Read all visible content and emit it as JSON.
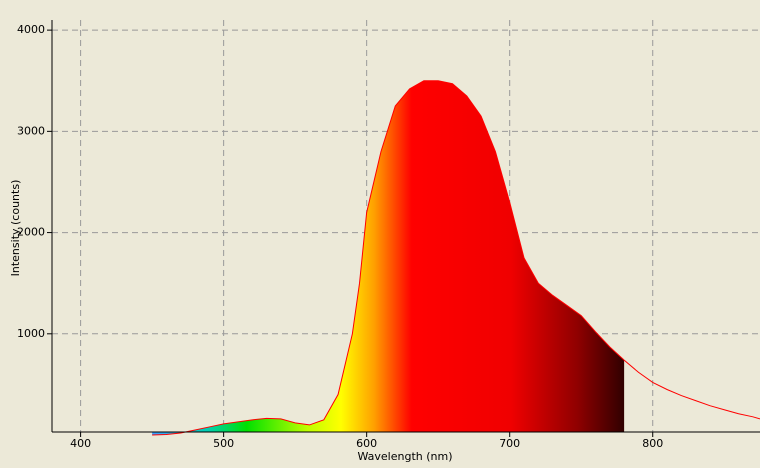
{
  "chart_data": {
    "type": "spectrum",
    "x_label": "Wavelength (nm)",
    "y_label": "Intensity (counts)",
    "color": "#ff0000",
    "x": [
      450,
      460,
      470,
      480,
      490,
      500,
      510,
      520,
      530,
      540,
      550,
      560,
      570,
      580,
      590,
      595,
      600,
      610,
      620,
      630,
      640,
      650,
      660,
      670,
      680,
      690,
      700,
      710,
      720,
      730,
      740,
      750,
      760,
      770,
      780,
      790,
      800,
      810,
      820,
      830,
      840,
      850,
      860,
      870,
      875
    ],
    "values": [
      0,
      5,
      20,
      50,
      80,
      110,
      130,
      150,
      165,
      160,
      120,
      100,
      150,
      400,
      1000,
      1500,
      2200,
      2800,
      3250,
      3420,
      3500,
      3500,
      3470,
      3350,
      3150,
      2800,
      2300,
      1750,
      1500,
      1380,
      1280,
      1180,
      1020,
      870,
      740,
      620,
      520,
      450,
      390,
      340,
      290,
      250,
      210,
      180,
      160
    ],
    "xlim": [
      380,
      875
    ],
    "ylim": [
      30,
      4100
    ],
    "xticks": [
      400,
      500,
      600,
      700,
      800
    ],
    "yticks": [
      1000,
      2000,
      3000,
      4000
    ],
    "grid": true
  }
}
